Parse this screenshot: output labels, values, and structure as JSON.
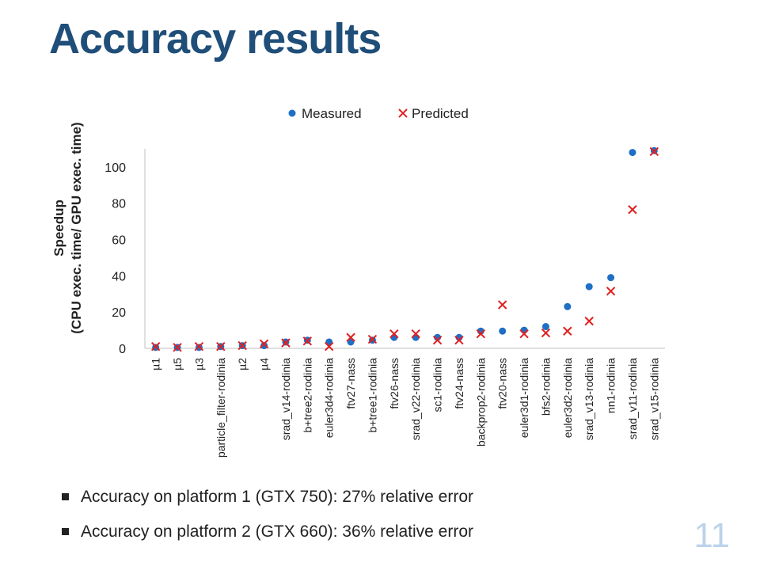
{
  "slide": {
    "title": "Accuracy results",
    "bullets": [
      "Accuracy on platform 1 (GTX 750): 27% relative error",
      "Accuracy on platform 2 (GTX 660): 36% relative error"
    ],
    "slide_number": "11"
  },
  "chart_data": {
    "type": "scatter",
    "title": "",
    "ylabel": [
      "Speedup",
      "(CPU exec. time/ GPU exec. time)"
    ],
    "xlabel": "",
    "ylim": [
      0,
      110
    ],
    "yticks": [
      0,
      20,
      40,
      60,
      80,
      100
    ],
    "grid": false,
    "legend_position": "top",
    "categories": [
      "µ1",
      "µ5",
      "µ3",
      "particle_filter-rodinia",
      "µ2",
      "µ4",
      "srad_v14-rodinia",
      "b+tree2-rodinia",
      "euler3d4-rodinia",
      "ftv27-nass",
      "b+tree1-rodinia",
      "ftv26-nass",
      "srad_v22-rodinia",
      "sc1-rodinia",
      "ftv24-nass",
      "backprop2-rodinia",
      "ftv20-nass",
      "euler3d1-rodinia",
      "bfs2-rodinia",
      "euler3d2-rodinia",
      "srad_v13-rodinia",
      "nn1-rodinia",
      "srad_v11-rodinia",
      "srad_v15-rodinia"
    ],
    "series": [
      {
        "name": "Measured",
        "marker": "circle",
        "color": "#1f6fc5",
        "values": [
          0.5,
          0.5,
          0.5,
          1,
          1.5,
          1.5,
          3.5,
          4.5,
          3.5,
          3.5,
          4.5,
          6,
          6,
          6,
          6,
          9.5,
          9.5,
          10,
          12,
          23,
          34,
          39,
          108,
          109
        ]
      },
      {
        "name": "Predicted",
        "marker": "x",
        "color": "#e02020",
        "values": [
          1,
          0.5,
          1,
          1,
          1.5,
          2.5,
          3,
          4,
          1,
          6,
          5,
          8,
          8,
          4.5,
          4.5,
          8,
          24,
          8,
          8.5,
          9.5,
          15,
          31.5,
          76.5,
          108.5
        ]
      }
    ]
  }
}
